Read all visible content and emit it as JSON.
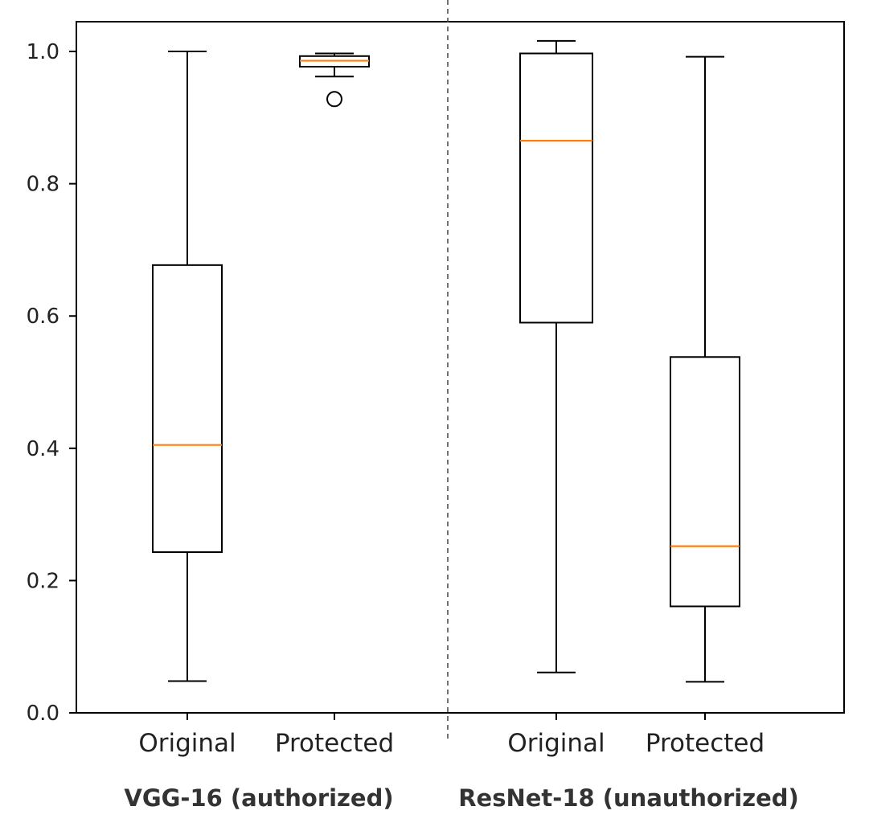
{
  "chart_data": {
    "type": "box",
    "y_ticks": [
      {
        "value": 0.0,
        "label": "0.0"
      },
      {
        "value": 0.2,
        "label": "0.2"
      },
      {
        "value": 0.4,
        "label": "0.4"
      },
      {
        "value": 0.6,
        "label": "0.6"
      },
      {
        "value": 0.8,
        "label": "0.8"
      },
      {
        "value": 1.0,
        "label": "1.0"
      }
    ],
    "ylim": [
      0.0,
      1.045
    ],
    "grid": false,
    "groups": [
      {
        "label": "VGG-16 (authorized)",
        "categories": [
          "Original",
          "Protected"
        ]
      },
      {
        "label": "ResNet-18 (unauthorized)",
        "categories": [
          "Original",
          "Protected"
        ]
      }
    ],
    "boxes": [
      {
        "group": 0,
        "category": "Original",
        "whisker_low": 0.048,
        "q1": 0.243,
        "median": 0.405,
        "q3": 0.677,
        "whisker_high": 1.0,
        "outliers": []
      },
      {
        "group": 0,
        "category": "Protected",
        "whisker_low": 0.962,
        "q1": 0.977,
        "median": 0.986,
        "q3": 0.993,
        "whisker_high": 0.997,
        "outliers": [
          0.928
        ]
      },
      {
        "group": 1,
        "category": "Original",
        "whisker_low": 0.061,
        "q1": 0.59,
        "median": 0.865,
        "q3": 0.997,
        "whisker_high": 1.016,
        "outliers": []
      },
      {
        "group": 1,
        "category": "Protected",
        "whisker_low": 0.047,
        "q1": 0.161,
        "median": 0.252,
        "q3": 0.538,
        "whisker_high": 0.992,
        "outliers": []
      }
    ],
    "colors": {
      "median": "#ff7f0e",
      "box": "#000000",
      "divider": "#444444"
    }
  }
}
